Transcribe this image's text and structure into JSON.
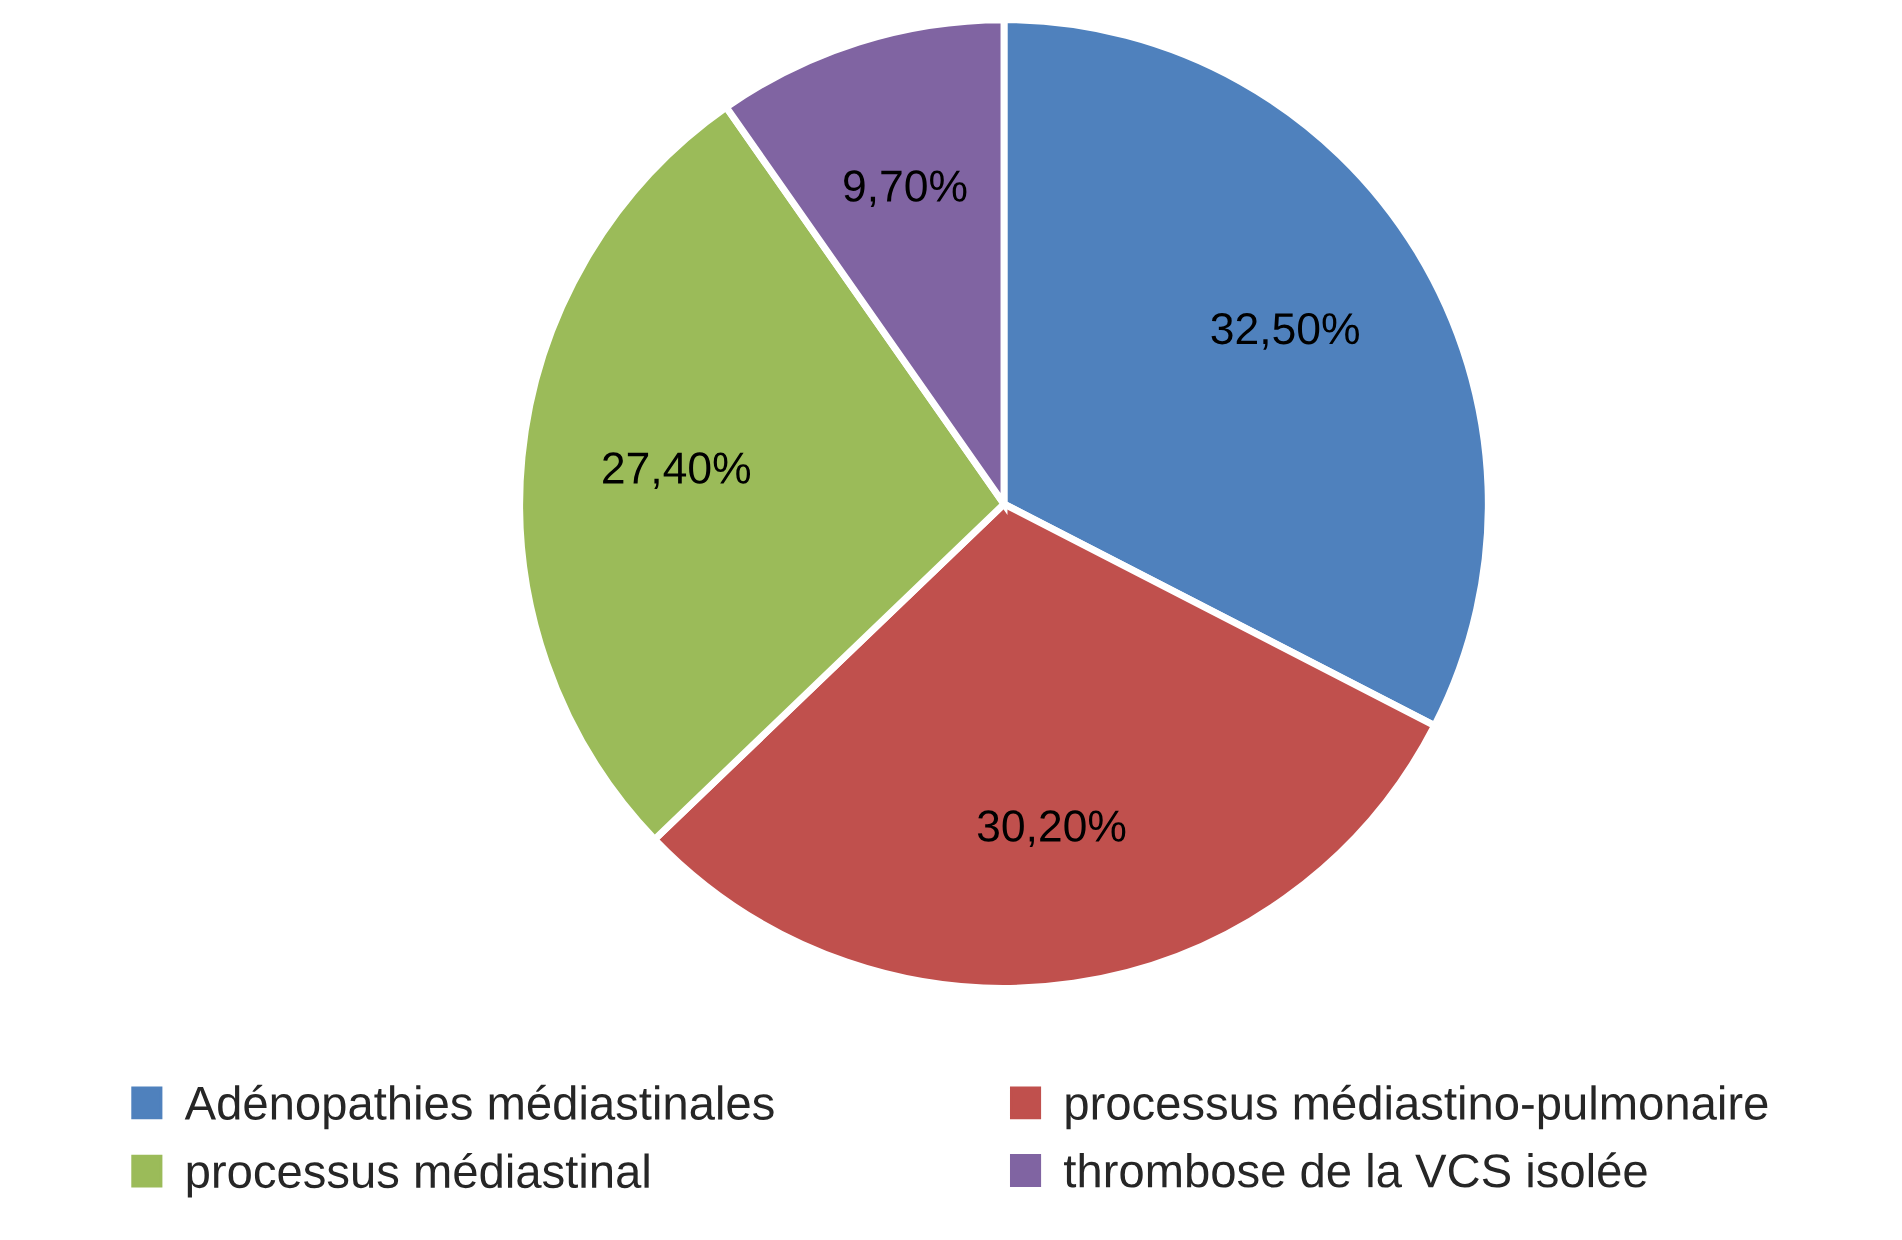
{
  "chart_data": {
    "type": "pie",
    "categories": [
      "Adénopathies médiastinales",
      "processus médiastino-pulmonaire",
      "processus médiastinal",
      "thrombose de la VCS isolée"
    ],
    "values": [
      32.5,
      30.2,
      27.4,
      9.7
    ],
    "value_labels": [
      "32,50%",
      "30,20%",
      "27,40%",
      "9,70%"
    ],
    "colors": [
      "#4f81bd",
      "#c0504d",
      "#9bbb59",
      "#8064a2"
    ],
    "legend": "bottom"
  }
}
